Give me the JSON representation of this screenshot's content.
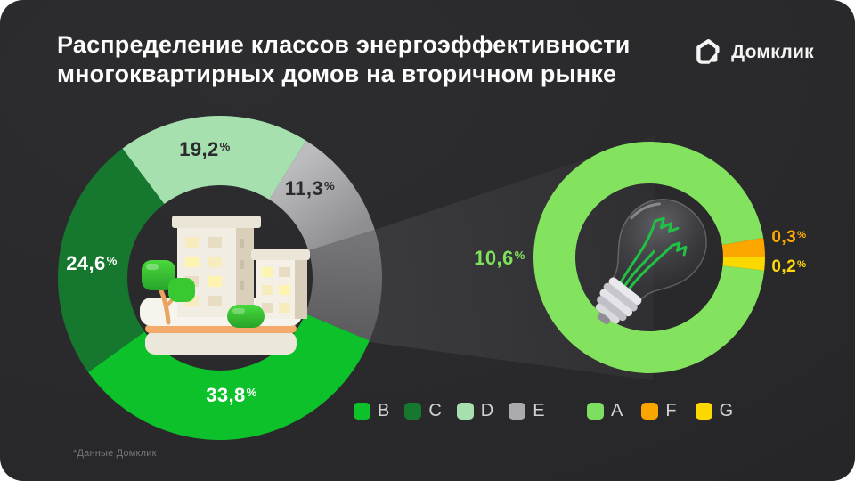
{
  "page": {
    "title_line1": "Распределение классов энергоэффективности",
    "title_line2": "многоквартирных домов на вторичном рынке",
    "footnote": "*Данные Домклик"
  },
  "logo": {
    "text": "Домклик"
  },
  "chart_data": [
    {
      "type": "pie",
      "id": "main-donut",
      "title": "Распределение классов энергоэффективности многоквартирных домов на вторичном рынке",
      "unit": "%",
      "start_angle": -37,
      "legend_position": "bottom",
      "segments": [
        {
          "label": "D",
          "value": 19.2,
          "display": "19,2",
          "color": "#a7e0af",
          "legend_color": "#a7e0af",
          "label_color": "#2b2b2d"
        },
        {
          "label": "E",
          "value": 11.3,
          "display": "11,3",
          "color": "#bcbcbe",
          "color2": "#8f8f92",
          "legend_color": "#ababad",
          "label_color": "#2b2b2d"
        },
        {
          "label": "A+F+G",
          "value": 11.1,
          "display": "",
          "color": "#757578",
          "color2": "#5e5e61",
          "expanded_to": "zoom-donut"
        },
        {
          "label": "B",
          "value": 33.8,
          "display": "33,8",
          "color": "#0dc12b",
          "legend_color": "#0dc12b",
          "label_color": "#ffffff"
        },
        {
          "label": "C",
          "value": 24.6,
          "display": "24,6",
          "color": "#15782e",
          "legend_color": "#15782e",
          "label_color": "#ffffff"
        }
      ]
    },
    {
      "type": "pie",
      "id": "zoom-donut",
      "title": "Классы A, F, G (увеличенный фрагмент)",
      "unit": "%",
      "start_angle": 96.5,
      "legend_position": "bottom",
      "segments": [
        {
          "label": "A",
          "value": 10.6,
          "display": "10,6",
          "color": "#83e25e",
          "legend_color": "#7ede5f",
          "label_color": "#7ee25a"
        },
        {
          "label": "F",
          "value": 0.3,
          "display": "0,3",
          "color": "#fca700",
          "legend_color": "#fba500",
          "label_color": "#ffa800"
        },
        {
          "label": "G",
          "value": 0.2,
          "display": "0,2",
          "color": "#fbd800",
          "legend_color": "#fcd800",
          "label_color": "#ffd60a"
        }
      ]
    }
  ]
}
